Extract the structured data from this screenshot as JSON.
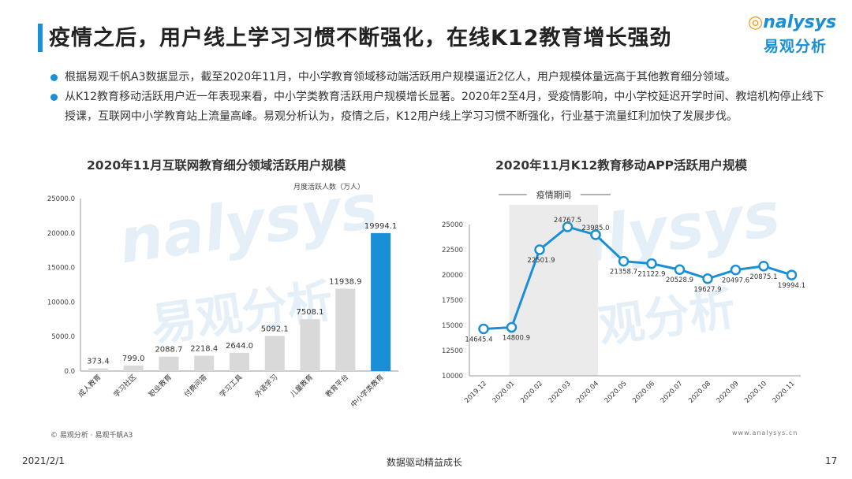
{
  "header": {
    "title": "疫情之后，用户线上学习习惯不断强化，在线K12教育增长强劲",
    "logo_text_en": "nalysys",
    "logo_text_cn": "易观分析"
  },
  "bullets": [
    "根据易观千帆A3数据显示，截至2020年11月，中小学教育领域移动端活跃用户规模逼近2亿人，用户规模体量远高于其他教育细分领域。",
    "从K12教育移动活跃用户近一年表现来看，中小学类教育活跃用户规模增长显著。2020年2至4月，受疫情影响，中小学校延迟开学时间、教培机构停止线下授课，互联网中小学教育站上流量高峰。易观分析认为，疫情之后，K12用户线上学习习惯不断强化，行业基于流量红利加快了发展步伐。"
  ],
  "watermark": {
    "en": "nalysys",
    "cn": "易观分析"
  },
  "colors": {
    "accent": "#1a8fd6",
    "bar_gray": "#d9d9d9",
    "highlight_bar": "#1a8fd6",
    "line": "#1a8fd6",
    "shade": "#ebebeb"
  },
  "chart_data": [
    {
      "type": "bar",
      "title": "2020年11月互联网教育细分领域活跃用户规模",
      "ylabel": "月度活跃人数（万人）",
      "ylim": [
        0,
        25000
      ],
      "yticks": [
        "0.0",
        "5000.0",
        "10000.0",
        "15000.0",
        "20000.0",
        "25000.0"
      ],
      "categories": [
        "成人教育",
        "学习社区",
        "职业教育",
        "付费问答",
        "学习工具",
        "外语学习",
        "儿童教育",
        "教育平台",
        "中小学类教育"
      ],
      "values": [
        373.4,
        799.0,
        2088.7,
        2218.4,
        2644.0,
        5092.1,
        7508.1,
        11938.9,
        19994.1
      ],
      "value_labels": [
        "373.4",
        "799.0",
        "2088.7",
        "2218.4",
        "2644.0",
        "5092.1",
        "7508.1",
        "11938.9",
        "19994.1"
      ],
      "highlight_index": 8
    },
    {
      "type": "line",
      "title": "2020年11月K12教育移动APP活跃用户规模",
      "ylim": [
        10000,
        25000
      ],
      "yticks": [
        "10000",
        "12500",
        "15000",
        "17500",
        "20000",
        "22500",
        "25000"
      ],
      "x": [
        "2019.12",
        "2020.01",
        "2020.02",
        "2020.03",
        "2020.04",
        "2020.05",
        "2020.06",
        "2020.07",
        "2020.08",
        "2020.09",
        "2020.10",
        "2020.11"
      ],
      "values": [
        14645.4,
        14800.9,
        22501.9,
        24767.5,
        23985.0,
        21358.7,
        21122.9,
        20528.9,
        19627.9,
        20497.6,
        20875.1,
        19994.1
      ],
      "value_labels": [
        "14645.4",
        "14800.9",
        "22501.9",
        "24767.5",
        "23985.0",
        "21358.7",
        "21122.9",
        "20528.9",
        "19627.9",
        "20497.6",
        "20875.1",
        "19994.1"
      ],
      "shaded_range": [
        "2020.01",
        "2020.04"
      ],
      "shaded_label": "疫情期间"
    }
  ],
  "footer": {
    "source": "© 易观分析 · 易观千帆A3",
    "site": "www.analysys.cn",
    "date": "2021/2/1",
    "slogan": "数据驱动精益成长",
    "page": "17"
  }
}
